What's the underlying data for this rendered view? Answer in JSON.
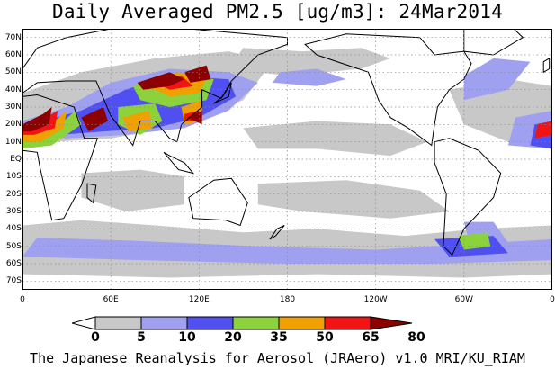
{
  "title": "Daily Averaged PM2.5 [ug/m3]: 24Mar2014",
  "credit": "The Japanese Reanalysis for Aerosol (JRAero) v1.0 MRI/KU_RIAM",
  "map": {
    "lon_range": [
      0,
      360
    ],
    "lat_range": [
      -75,
      75
    ],
    "y_ticks": [
      {
        "lat": 70,
        "label": "70N"
      },
      {
        "lat": 60,
        "label": "60N"
      },
      {
        "lat": 50,
        "label": "50N"
      },
      {
        "lat": 40,
        "label": "40N"
      },
      {
        "lat": 30,
        "label": "30N"
      },
      {
        "lat": 20,
        "label": "20N"
      },
      {
        "lat": 10,
        "label": "10N"
      },
      {
        "lat": 0,
        "label": "EQ"
      },
      {
        "lat": -10,
        "label": "10S"
      },
      {
        "lat": -20,
        "label": "20S"
      },
      {
        "lat": -30,
        "label": "30S"
      },
      {
        "lat": -40,
        "label": "40S"
      },
      {
        "lat": -50,
        "label": "50S"
      },
      {
        "lat": -60,
        "label": "60S"
      },
      {
        "lat": -70,
        "label": "70S"
      }
    ],
    "x_ticks": [
      {
        "lon": 0,
        "label": "0"
      },
      {
        "lon": 60,
        "label": "60E"
      },
      {
        "lon": 120,
        "label": "120E"
      },
      {
        "lon": 180,
        "label": "180"
      },
      {
        "lon": 240,
        "label": "120W"
      },
      {
        "lon": 300,
        "label": "60W"
      },
      {
        "lon": 360,
        "label": "0"
      }
    ],
    "grid": true
  },
  "colorbar": {
    "levels": [
      "0",
      "5",
      "10",
      "20",
      "35",
      "50",
      "65",
      "80"
    ],
    "colors": [
      "#ffffff",
      "#c8c8c8",
      "#a0a0f0",
      "#5050f0",
      "#8cd23c",
      "#f0a000",
      "#f01414",
      "#8c0000"
    ]
  }
}
